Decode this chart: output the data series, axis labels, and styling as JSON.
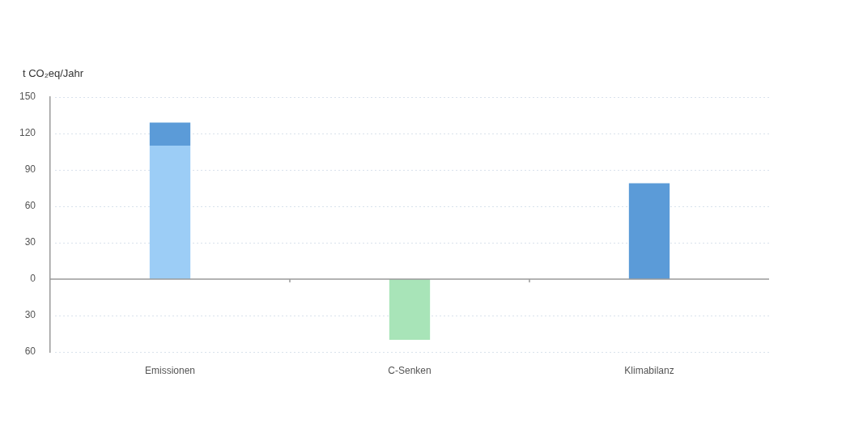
{
  "chart_data": {
    "type": "bar",
    "ylabel": "t CO₂eq/Jahr",
    "categories": [
      "Emissionen",
      "C-Senken",
      "Klimabilanz"
    ],
    "stacked": true,
    "series": [
      {
        "colors": [
          "#9ccdf6",
          "#a8e4b8",
          "#5b9bd8"
        ],
        "values": [
          110,
          -50,
          79
        ]
      },
      {
        "color": "#5b9bd8",
        "values": [
          19,
          null,
          null
        ]
      }
    ],
    "ylim": [
      -60,
      150
    ],
    "yticks": [
      {
        "value": -60,
        "label": "60"
      },
      {
        "value": -30,
        "label": "30"
      },
      0,
      30,
      60,
      90,
      120,
      150
    ],
    "grid": "y",
    "legend": false
  }
}
